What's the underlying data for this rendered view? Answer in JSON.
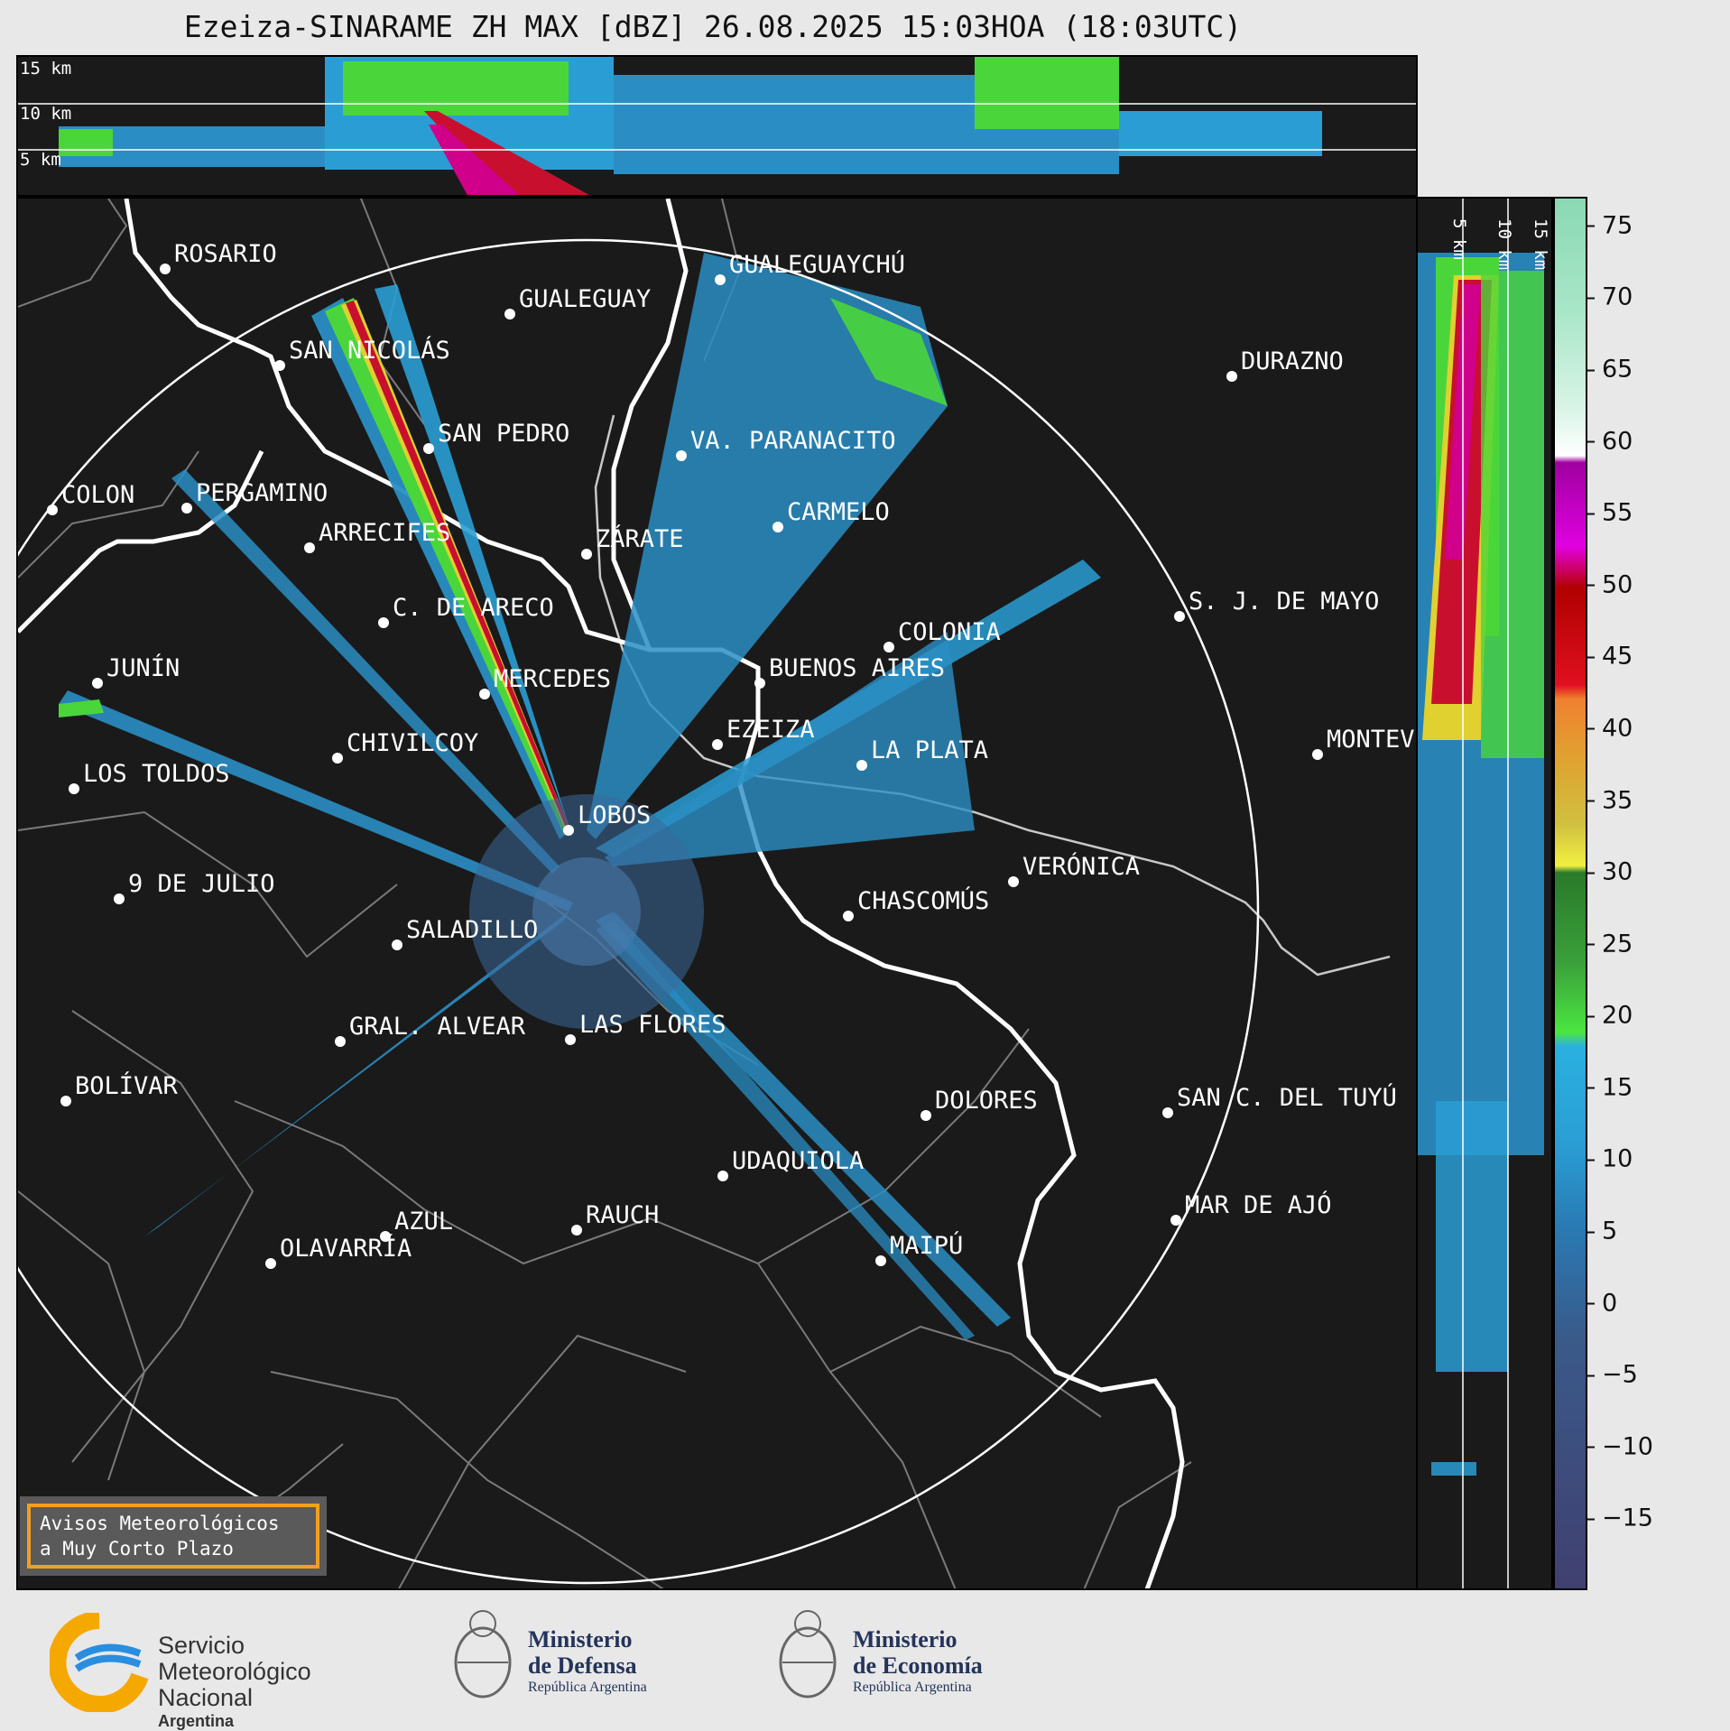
{
  "title": "Ezeiza-SINARAME ZH MAX [dBZ] 26.08.2025 15:03HOA (18:03UTC)",
  "top_panel": {
    "height_labels": [
      "15 km",
      "10 km",
      "5 km"
    ]
  },
  "side_panel": {
    "height_labels": [
      "5 km",
      "10 km",
      "15 km"
    ]
  },
  "colorbar": {
    "unit": "dBZ",
    "ticks": [
      "75",
      "70",
      "65",
      "60",
      "55",
      "50",
      "45",
      "40",
      "35",
      "30",
      "25",
      "20",
      "15",
      "10",
      "5",
      "0",
      "−5",
      "−10",
      "−15"
    ],
    "range": [
      -20,
      77
    ]
  },
  "cities": [
    {
      "name": "ROSARIO"
    },
    {
      "name": "GUALEGUAYCHÚ"
    },
    {
      "name": "GUALEGUAY"
    },
    {
      "name": "SAN NICOLÁS"
    },
    {
      "name": "DURAZNO"
    },
    {
      "name": "SAN PEDRO"
    },
    {
      "name": "VA. PARANACITO"
    },
    {
      "name": "COLON"
    },
    {
      "name": "PERGAMINO"
    },
    {
      "name": "CARMELO"
    },
    {
      "name": "ARRECIFES"
    },
    {
      "name": "ZÁRATE"
    },
    {
      "name": "S. J. DE MAYO"
    },
    {
      "name": "C. DE ARECO"
    },
    {
      "name": "COLONIA"
    },
    {
      "name": "JUNÍN"
    },
    {
      "name": "BUENOS AIRES"
    },
    {
      "name": "MERCEDES"
    },
    {
      "name": "EZEIZA"
    },
    {
      "name": "MONTEVIDEO"
    },
    {
      "name": "CHIVILCOY"
    },
    {
      "name": "LA PLATA"
    },
    {
      "name": "LOS TOLDOS"
    },
    {
      "name": "LOBOS"
    },
    {
      "name": "VERÓNICA"
    },
    {
      "name": "9 DE JULIO"
    },
    {
      "name": "CHASCOMÚS"
    },
    {
      "name": "SALADILLO"
    },
    {
      "name": "GRAL. ALVEAR"
    },
    {
      "name": "LAS FLORES"
    },
    {
      "name": "BOLÍVAR"
    },
    {
      "name": "DOLORES"
    },
    {
      "name": "SAN C. DEL TUYÚ"
    },
    {
      "name": "UDAQUIOLA"
    },
    {
      "name": "MAR DE AJÓ"
    },
    {
      "name": "AZUL"
    },
    {
      "name": "RAUCH"
    },
    {
      "name": "OLAVARRÍA"
    },
    {
      "name": "MAIPÚ"
    }
  ],
  "alert_box": {
    "line1": "Avisos Meteorológicos",
    "line2": "a Muy Corto Plazo"
  },
  "footer": {
    "smn": {
      "line1": "Servicio",
      "line2": "Meteorológico",
      "line3": "Nacional",
      "line4": "Argentina"
    },
    "defensa": {
      "line1": "Ministerio",
      "line2": "de Defensa",
      "line3": "República Argentina"
    },
    "economia": {
      "line1": "Ministerio",
      "line2": "de Economía",
      "line3": "República Argentina"
    }
  },
  "colors": {
    "background": "#1a1a1a",
    "range_ring": "#ffffff",
    "coastline": "#ffffff",
    "borders": "#7a7a7a",
    "accent_alert": "#f0a020"
  }
}
